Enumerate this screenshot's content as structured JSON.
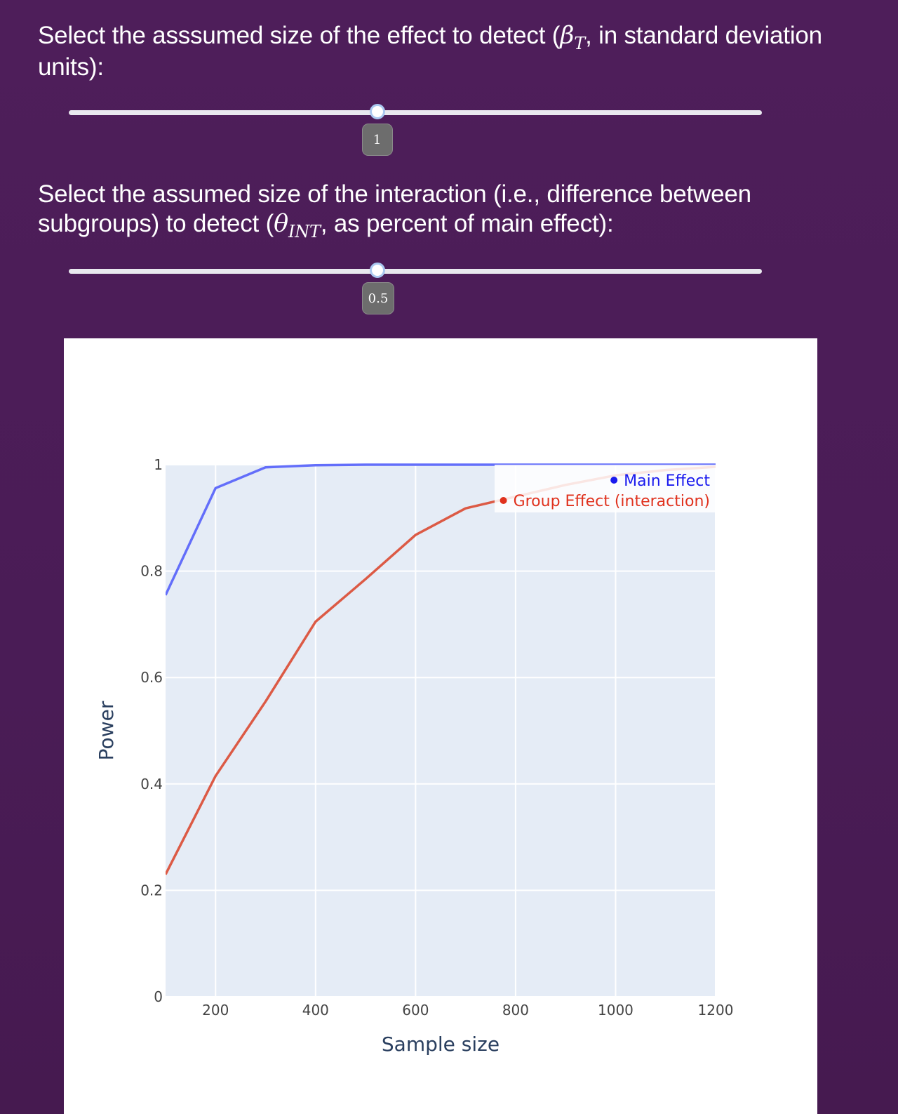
{
  "controls": {
    "effect_prompt_a": "Select the asssumed size of the effect to detect (",
    "effect_symbol": "β",
    "effect_subscript": "T",
    "effect_prompt_b": ", in standard deviation units):",
    "effect_value": "1",
    "effect_fraction": 0.445,
    "interaction_prompt_a": "Select the assumed size of the interaction (i.e., difference between subgroups) to detect (",
    "interaction_symbol": "θ",
    "interaction_subscript": "INT",
    "interaction_prompt_b": ", as percent of main effect):",
    "interaction_value": "0.5",
    "interaction_fraction": 0.445
  },
  "chart_data": {
    "type": "line",
    "title": "",
    "xlabel": "Sample size",
    "ylabel": "Power",
    "xlim": [
      100,
      1200
    ],
    "ylim": [
      0,
      1
    ],
    "xticks": [
      200,
      400,
      600,
      800,
      1000,
      1200
    ],
    "yticks": [
      0,
      0.2,
      0.4,
      0.6,
      0.8,
      1
    ],
    "ytick_labels": [
      "0",
      "0.2",
      "0.4",
      "0.6",
      "0.8",
      "1"
    ],
    "grid": true,
    "legend_position": "top-right",
    "series": [
      {
        "name": "Main Effect",
        "color": "#636efa",
        "legend_color": "#1a1aee",
        "x": [
          100,
          200,
          300,
          400,
          500,
          600,
          700,
          800,
          900,
          1000,
          1100,
          1200
        ],
        "y": [
          0.755,
          0.956,
          0.995,
          0.999,
          1.0,
          1.0,
          1.0,
          1.0,
          1.0,
          1.0,
          1.0,
          1.0
        ]
      },
      {
        "name": "Group Effect (interaction)",
        "color": "#dc5a45",
        "legend_color": "#e0321e",
        "x": [
          100,
          200,
          300,
          400,
          500,
          600,
          700,
          800,
          900,
          1000,
          1100,
          1200
        ],
        "y": [
          0.23,
          0.415,
          0.555,
          0.705,
          0.785,
          0.868,
          0.918,
          0.94,
          0.962,
          0.98,
          0.99,
          0.996
        ]
      }
    ]
  }
}
